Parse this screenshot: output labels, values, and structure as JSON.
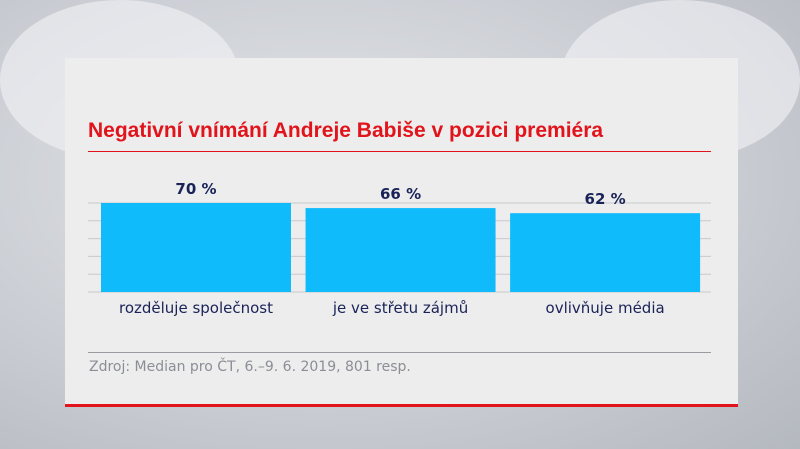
{
  "chart_data": {
    "type": "bar",
    "title": "Negativní vnímání Andreje Babiše v pozici premiéra",
    "categories": [
      "rozděluje společnost",
      "je ve střetu zájmů",
      "ovlivňuje média"
    ],
    "values": [
      70,
      66,
      62
    ],
    "data_labels": [
      "70 %",
      "66 %",
      "62 %"
    ],
    "xlabel": "",
    "ylabel": "",
    "ylim": [
      0,
      70
    ],
    "grid": true,
    "bar_color": "#10bbfb",
    "label_color": "#1a2357",
    "title_color": "#e1141b"
  },
  "source": "Zdroj: Median pro ČT, 6.–9. 6. 2019, 801 resp."
}
